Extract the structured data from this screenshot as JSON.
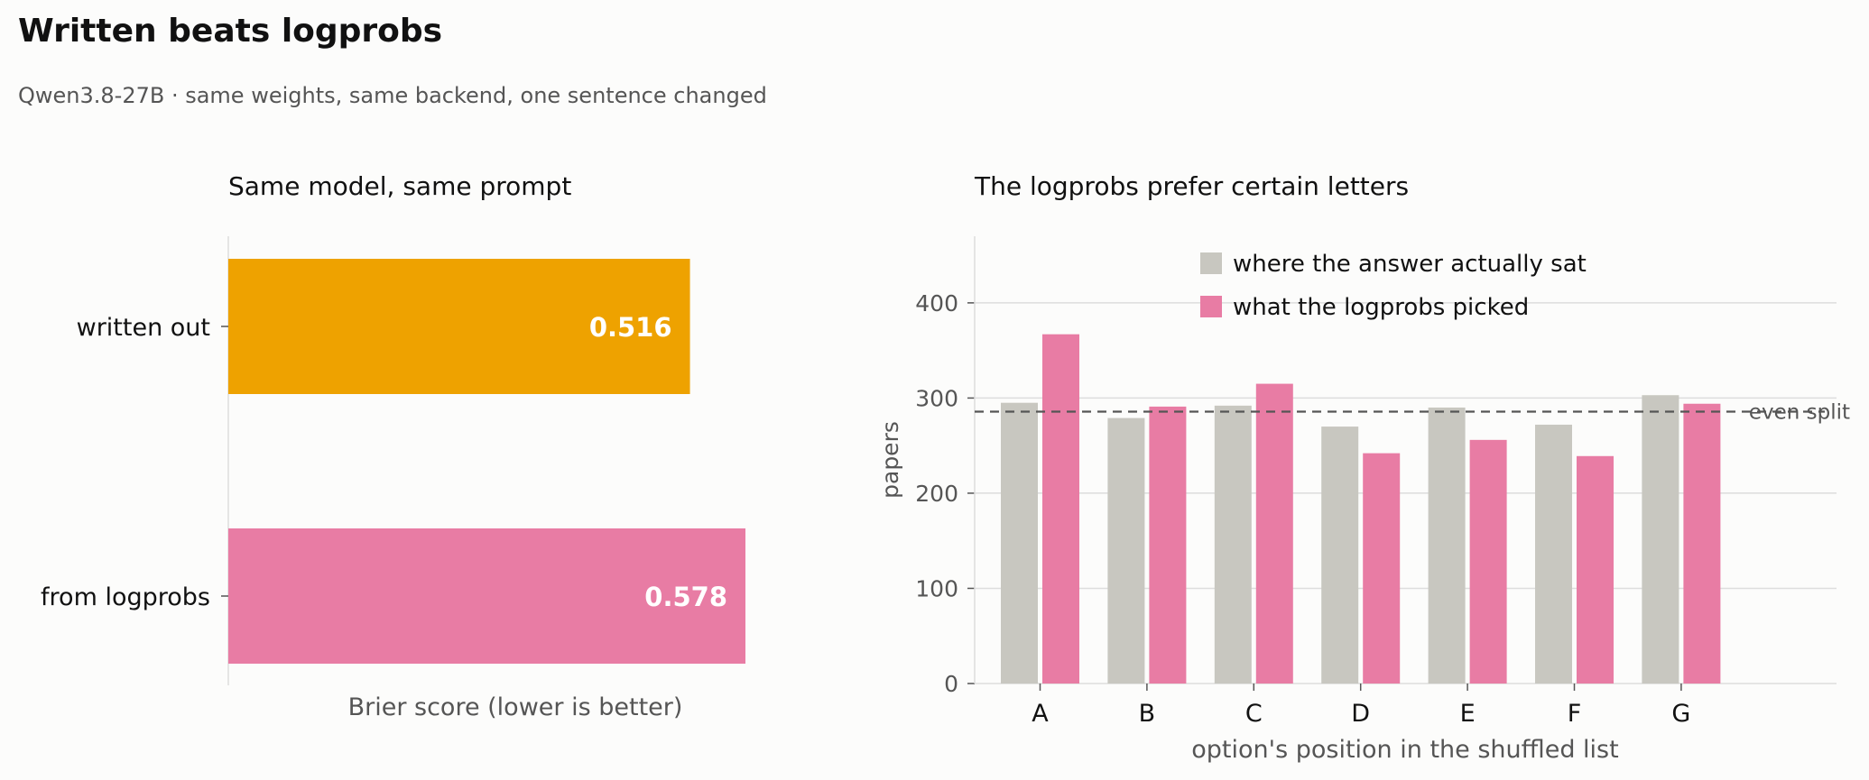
{
  "figure": {
    "title": "Written beats logprobs",
    "subtitle": "Qwen3.8-27B · same weights, same backend, one sentence changed"
  },
  "chart_data": [
    {
      "type": "bar",
      "orientation": "horizontal",
      "title": "Same model, same prompt",
      "categories": [
        "written out",
        "from logprobs"
      ],
      "values": [
        0.516,
        0.578
      ],
      "value_labels": [
        "0.516",
        "0.578"
      ],
      "colors": [
        "#eea200",
        "#e87ca4"
      ],
      "xlabel": "Brier score   (lower is better)",
      "xlim": [
        0,
        0.58
      ],
      "grid": false
    },
    {
      "type": "bar",
      "title": "The logprobs prefer certain letters",
      "categories": [
        "A",
        "B",
        "C",
        "D",
        "E",
        "F",
        "G"
      ],
      "series": [
        {
          "name": "where the answer actually sat",
          "color": "#c8c7c0",
          "values": [
            295,
            279,
            292,
            270,
            290,
            272,
            303
          ]
        },
        {
          "name": "what the logprobs picked",
          "color": "#e87ca4",
          "values": [
            367,
            291,
            315,
            242,
            256,
            239,
            294
          ]
        }
      ],
      "reference_line": {
        "label": "even split",
        "value": 285.7
      },
      "xlabel": "option's position in the shuffled list",
      "ylabel": "papers",
      "ylim": [
        0,
        470
      ],
      "yticks": [
        0,
        100,
        200,
        300,
        400
      ],
      "grid": true,
      "legend": "top-center"
    }
  ]
}
